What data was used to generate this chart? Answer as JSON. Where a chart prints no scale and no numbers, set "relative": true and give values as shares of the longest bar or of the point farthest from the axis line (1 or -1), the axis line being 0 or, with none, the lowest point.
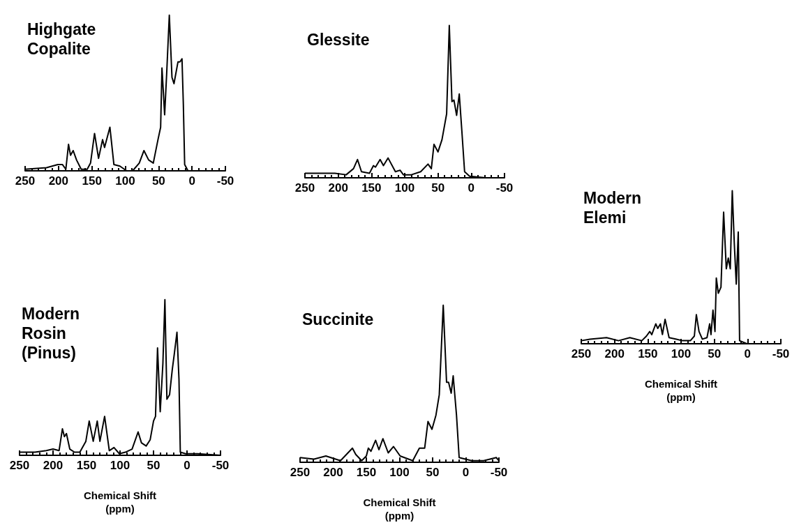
{
  "chart_data": [
    {
      "type": "line",
      "title": "Highgate\nCopalite",
      "relative": true,
      "color": "#000000",
      "xlim": [
        250,
        -50
      ],
      "xticks": [
        250,
        200,
        150,
        100,
        50,
        0,
        -50
      ],
      "x": [
        250,
        218,
        201,
        194,
        189,
        185,
        182,
        178,
        173,
        166,
        157,
        152,
        146,
        140,
        134,
        131,
        123,
        117,
        108,
        98,
        89,
        79,
        72,
        65,
        58,
        51,
        47,
        45,
        41,
        38,
        34,
        30,
        27,
        21,
        18,
        15,
        13,
        11,
        6,
        -8,
        -29,
        -50
      ],
      "values": [
        0.01,
        0.02,
        0.04,
        0.04,
        0.01,
        0.17,
        0.1,
        0.13,
        0.07,
        0.01,
        0.01,
        0.05,
        0.24,
        0.08,
        0.2,
        0.15,
        0.28,
        0.04,
        0.03,
        0.0,
        0.0,
        0.05,
        0.13,
        0.07,
        0.05,
        0.2,
        0.28,
        0.66,
        0.36,
        0.62,
        1.0,
        0.6,
        0.56,
        0.7,
        0.7,
        0.72,
        0.43,
        0.04,
        0.0,
        0.0,
        0.0,
        0.0
      ]
    },
    {
      "type": "line",
      "title": "Glessite",
      "relative": true,
      "color": "#000000",
      "xlim": [
        250,
        -50
      ],
      "xticks": [
        250,
        200,
        150,
        100,
        50,
        0,
        -50
      ],
      "x": [
        250,
        205,
        188,
        177,
        171,
        165,
        153,
        147,
        144,
        137,
        132,
        125,
        114,
        107,
        102,
        90,
        76,
        65,
        60,
        56,
        50,
        44,
        37,
        33,
        29,
        26,
        22,
        18,
        14,
        10,
        2.5,
        -22,
        -50
      ],
      "values": [
        0.03,
        0.03,
        0.02,
        0.06,
        0.12,
        0.04,
        0.03,
        0.08,
        0.07,
        0.12,
        0.08,
        0.13,
        0.04,
        0.05,
        0.02,
        0.02,
        0.04,
        0.09,
        0.06,
        0.22,
        0.17,
        0.25,
        0.42,
        1.0,
        0.5,
        0.51,
        0.41,
        0.55,
        0.3,
        0.04,
        0.01,
        0.0,
        0.0
      ]
    },
    {
      "type": "line",
      "title": "Modern\nElemi",
      "xlabel": "Chemical Shift\n(ppm)",
      "relative": true,
      "color": "#000000",
      "xlim": [
        250,
        -50
      ],
      "xticks": [
        250,
        200,
        150,
        100,
        50,
        0,
        -50
      ],
      "x": [
        250,
        237,
        212,
        194,
        177,
        159,
        152,
        147,
        144,
        138,
        135,
        131,
        128,
        124,
        118,
        107,
        98,
        86,
        80,
        77,
        73,
        68,
        61,
        57,
        55,
        52,
        49,
        47,
        44,
        40,
        36,
        32,
        29,
        26,
        23,
        20,
        17,
        14,
        12,
        1,
        -23,
        -50
      ],
      "values": [
        0.02,
        0.03,
        0.04,
        0.02,
        0.04,
        0.02,
        0.05,
        0.08,
        0.06,
        0.13,
        0.1,
        0.13,
        0.06,
        0.16,
        0.04,
        0.03,
        0.02,
        0.02,
        0.05,
        0.19,
        0.08,
        0.03,
        0.04,
        0.13,
        0.06,
        0.22,
        0.08,
        0.43,
        0.33,
        0.37,
        0.86,
        0.49,
        0.56,
        0.49,
        1.0,
        0.66,
        0.39,
        0.73,
        0.02,
        0.0,
        0.0,
        0.0
      ]
    },
    {
      "type": "line",
      "title": "Modern\nRosin\n(Pinus)",
      "xlabel": "Chemical Shift\n(ppm)",
      "relative": true,
      "color": "#000000",
      "xlim": [
        250,
        -50
      ],
      "xticks": [
        250,
        200,
        150,
        100,
        50,
        0,
        -50
      ],
      "x": [
        250,
        227,
        210,
        200,
        191,
        186,
        183,
        180,
        175,
        168,
        160,
        151,
        146,
        140,
        134,
        130,
        123,
        116,
        109,
        101,
        92,
        82,
        73,
        68,
        61,
        55,
        50,
        47,
        44,
        40,
        36,
        33,
        30,
        26,
        22,
        19,
        15,
        12,
        10,
        2,
        -16,
        -50
      ],
      "values": [
        0.02,
        0.02,
        0.03,
        0.04,
        0.03,
        0.17,
        0.12,
        0.14,
        0.04,
        0.02,
        0.02,
        0.09,
        0.22,
        0.09,
        0.22,
        0.09,
        0.25,
        0.03,
        0.05,
        0.01,
        0.02,
        0.04,
        0.15,
        0.08,
        0.06,
        0.1,
        0.22,
        0.25,
        0.69,
        0.28,
        0.59,
        1.0,
        0.36,
        0.39,
        0.55,
        0.65,
        0.79,
        0.49,
        0.02,
        0.01,
        0.01,
        0.0
      ]
    },
    {
      "type": "line",
      "title": "Succinite",
      "xlabel": "Chemical Shift\n(ppm)",
      "relative": true,
      "color": "#000000",
      "xlim": [
        250,
        -50
      ],
      "xticks": [
        250,
        200,
        150,
        100,
        50,
        0,
        -50
      ],
      "x": [
        250,
        229,
        211,
        189,
        180,
        171,
        166,
        157,
        150,
        147,
        143,
        136,
        131,
        125,
        117,
        109,
        99,
        80,
        70,
        62,
        57,
        51,
        45,
        40,
        34,
        29,
        26,
        22,
        19,
        14,
        10,
        -9,
        -27,
        -46,
        -50
      ],
      "values": [
        0.03,
        0.02,
        0.04,
        0.01,
        0.05,
        0.09,
        0.05,
        0.01,
        0.04,
        0.09,
        0.07,
        0.14,
        0.08,
        0.15,
        0.06,
        0.1,
        0.04,
        0.01,
        0.09,
        0.09,
        0.26,
        0.21,
        0.3,
        0.43,
        1.0,
        0.51,
        0.51,
        0.44,
        0.55,
        0.3,
        0.03,
        0.01,
        0.01,
        0.03,
        0.01
      ]
    }
  ]
}
